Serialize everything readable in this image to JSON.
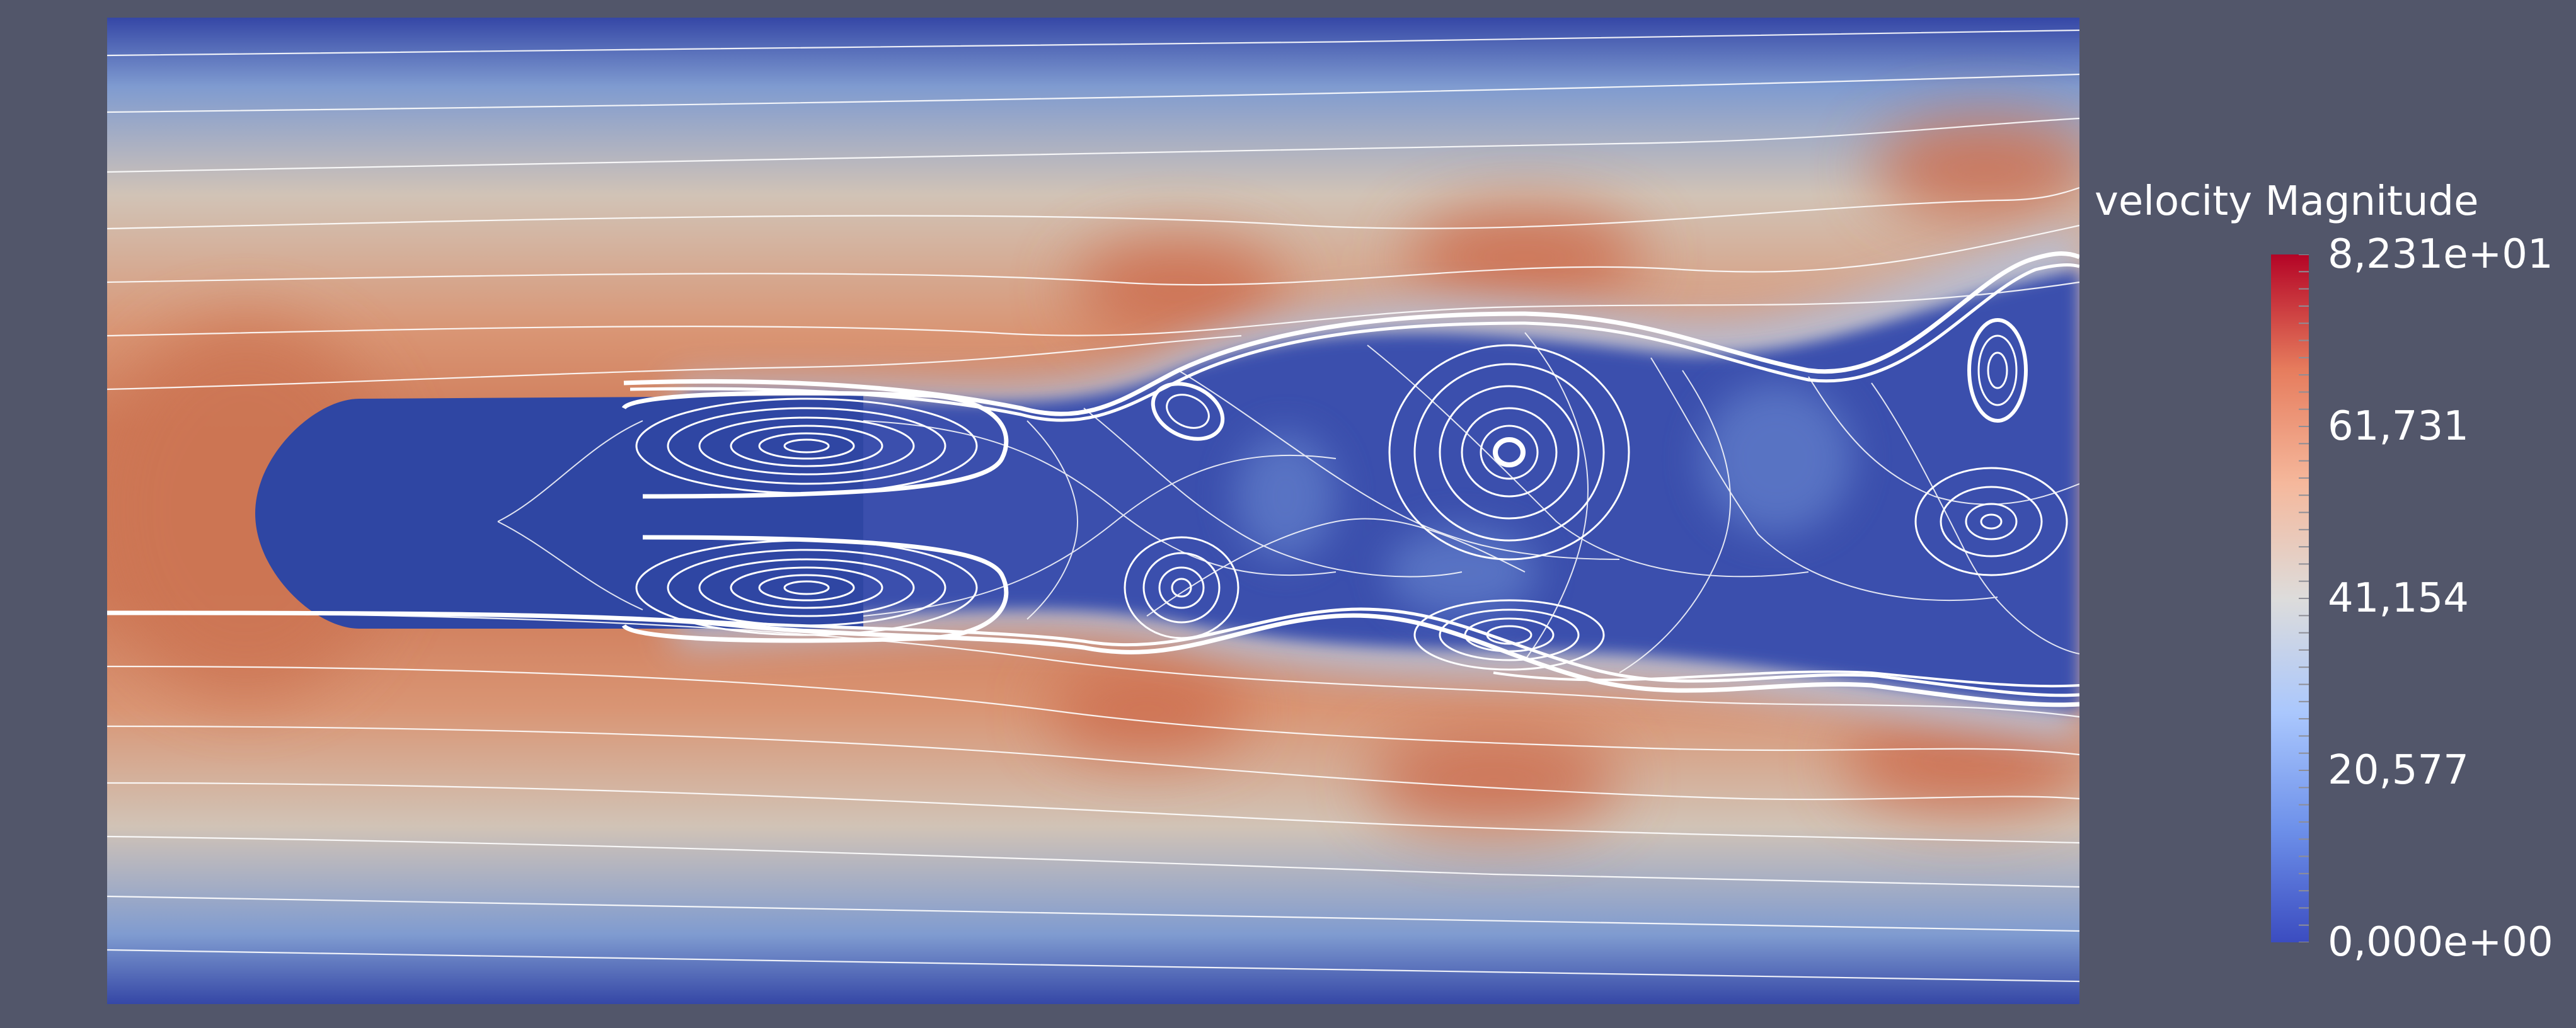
{
  "legend": {
    "title": "velocity Magnitude",
    "ticks": [
      {
        "label": "8,231e+01",
        "value": 82.31
      },
      {
        "label": "61,731",
        "value": 61.731
      },
      {
        "label": "41,154",
        "value": 41.154
      },
      {
        "label": "20,577",
        "value": 20.577
      },
      {
        "label": "0,000e+00",
        "value": 0.0
      }
    ],
    "range": [
      0.0,
      82.31
    ],
    "colormap": [
      "#3b4cc0",
      "#6e91ea",
      "#aac7fd",
      "#dddcdb",
      "#f5b89c",
      "#e67c5d",
      "#b40426"
    ]
  },
  "colors": {
    "background": "#52566a",
    "low": "#3649a8",
    "mid": "#c9c6c0",
    "high": "#c9704f",
    "streamline": "#ffffff"
  }
}
